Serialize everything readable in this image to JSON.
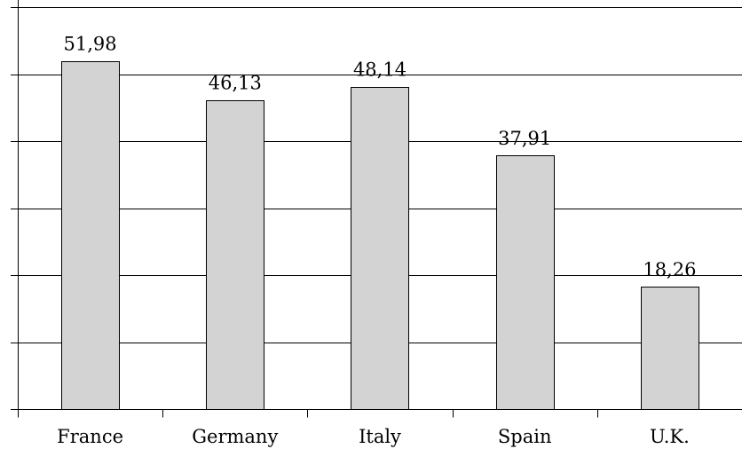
{
  "chart_data": {
    "type": "bar",
    "categories": [
      "France",
      "Germany",
      "Italy",
      "Spain",
      "U.K."
    ],
    "values": [
      51.98,
      46.13,
      48.14,
      37.91,
      18.26
    ],
    "data_labels": [
      "51,98",
      "46,13",
      "48,14",
      "37,91",
      "18,26"
    ],
    "ylim": [
      0,
      60
    ],
    "y_grid_step": 10,
    "grid": true,
    "legend": "none",
    "bar_color": "#d3d3d3"
  }
}
